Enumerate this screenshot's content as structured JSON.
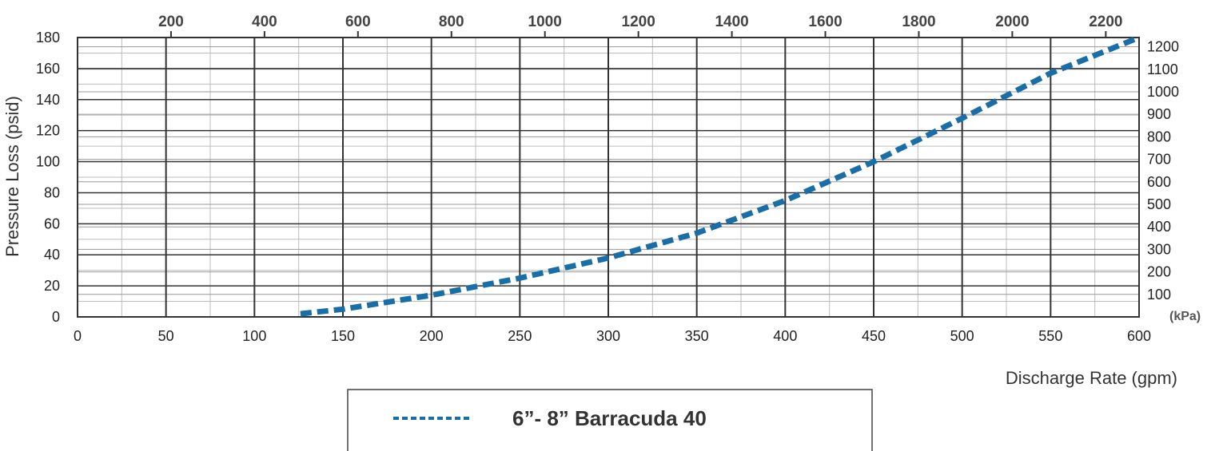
{
  "chart_data": {
    "type": "line",
    "xlabel": "Discharge Rate (gpm)",
    "ylabel": "Pressure Loss  (psid)",
    "xlim": [
      0,
      600
    ],
    "ylim": [
      0,
      180
    ],
    "x_ticks": [
      "0",
      "50",
      "100",
      "150",
      "200",
      "250",
      "300",
      "350",
      "400",
      "450",
      "500",
      "550",
      "600"
    ],
    "y_ticks": [
      "0",
      "20",
      "40",
      "60",
      "80",
      "100",
      "120",
      "140",
      "160",
      "180"
    ],
    "secondary_x_ticks": [
      "200",
      "400",
      "600",
      "800",
      "1000",
      "1200",
      "1400",
      "1600",
      "1800",
      "2000",
      "2200"
    ],
    "secondary_y_unit": "(kPa)",
    "secondary_y_ticks": [
      "100",
      "200",
      "300",
      "400",
      "500",
      "600",
      "700",
      "800",
      "900",
      "1000",
      "1100",
      "1200"
    ],
    "grid": true,
    "legend_position": "bottom-center",
    "series": [
      {
        "name": "6”- 8” Barracuda 40",
        "color": "#1a6ea8",
        "style": "dashed",
        "x": [
          126,
          150,
          200,
          250,
          300,
          350,
          400,
          450,
          500,
          550,
          600
        ],
        "y": [
          2,
          5,
          14,
          25,
          38,
          54,
          75,
          100,
          128,
          157,
          180
        ]
      }
    ]
  }
}
